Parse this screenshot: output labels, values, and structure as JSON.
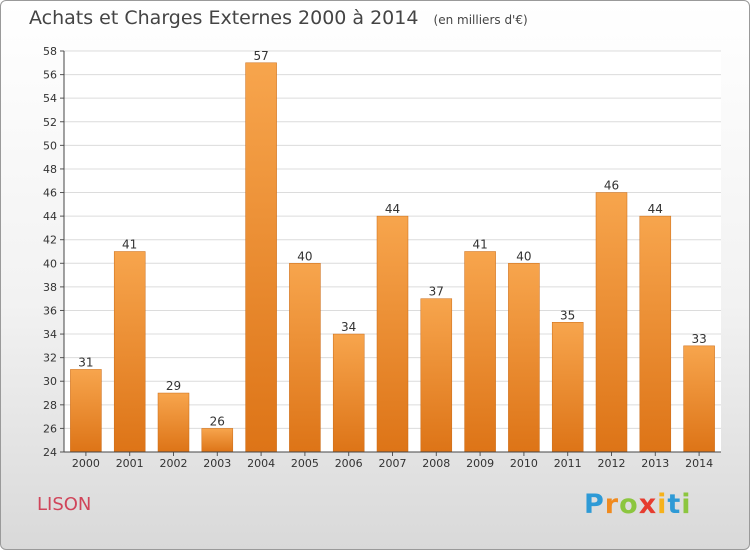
{
  "chart_data": {
    "type": "bar",
    "title": "Achats et Charges Externes 2000 à 2014",
    "subtitle": "(en milliers d'€)",
    "categories": [
      "2000",
      "2001",
      "2002",
      "2003",
      "2004",
      "2005",
      "2006",
      "2007",
      "2008",
      "2009",
      "2010",
      "2011",
      "2012",
      "2013",
      "2014"
    ],
    "values": [
      31,
      41,
      29,
      26,
      57,
      40,
      34,
      44,
      37,
      41,
      40,
      35,
      46,
      44,
      33
    ],
    "ylim": [
      24,
      58
    ],
    "yticks": [
      24,
      26,
      28,
      30,
      32,
      34,
      36,
      38,
      40,
      42,
      44,
      46,
      48,
      50,
      52,
      54,
      56,
      58
    ],
    "grid": true,
    "bar_color": "#f0912d"
  },
  "place_name": "LISON",
  "logo": {
    "letters": [
      "P",
      "r",
      "o",
      "x",
      "i",
      "t",
      "i"
    ],
    "colors": [
      "#2e9ad6",
      "#f08a1e",
      "#8cc63f",
      "#e63c2f",
      "#f6b21b",
      "#2e9ad6",
      "#8cc63f"
    ]
  }
}
